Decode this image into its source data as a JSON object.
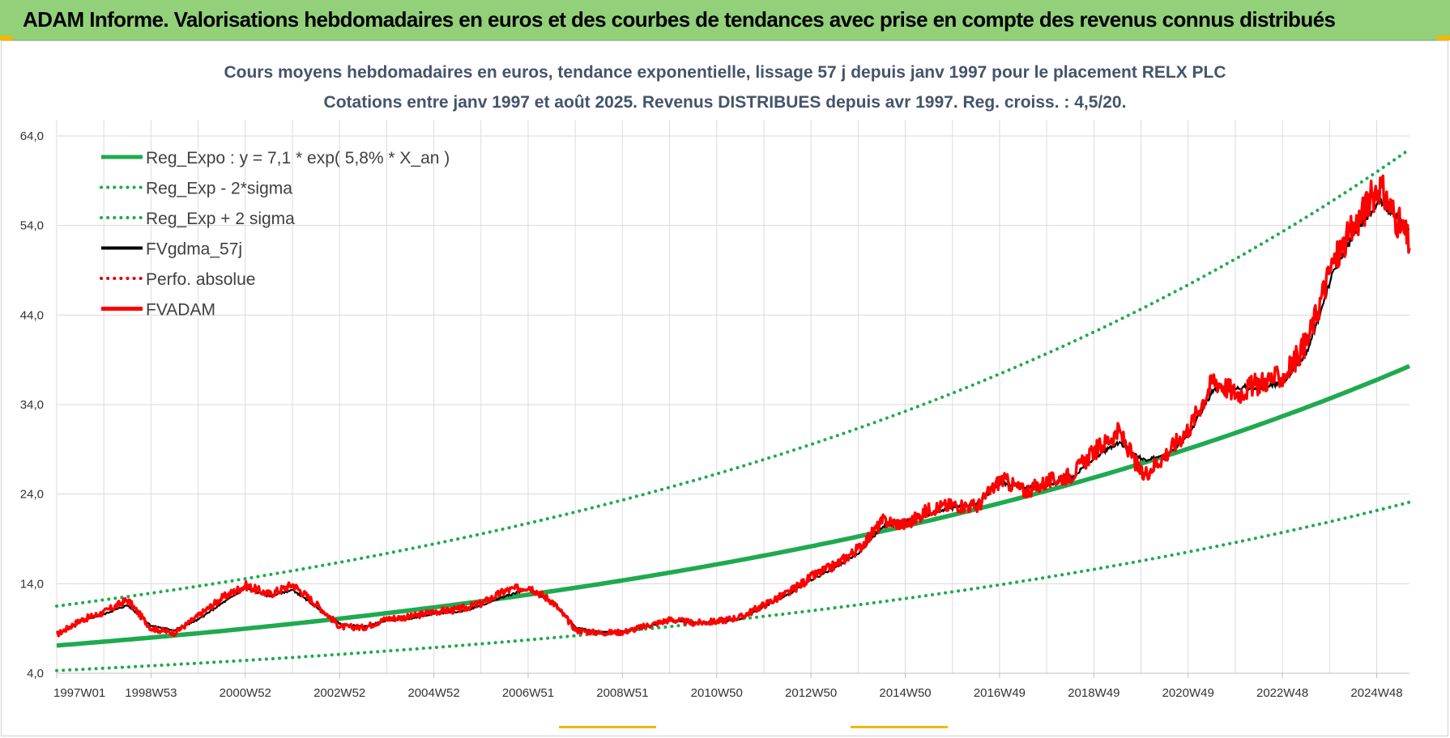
{
  "banner": {
    "title": "ADAM Informe. Valorisations hebdomadaires en euros et des courbes de tendances avec prise en compte des revenus connus distribués",
    "color": "#92d07a"
  },
  "chart_data": {
    "type": "line",
    "title": "Cours moyens hebdomadaires en euros, tendance exponentielle, lissage 57 j depuis janv 1997  pour le placement RELX PLC",
    "subtitle": "Cotations entre janv 1997 et août 2025.  Revenus DISTRIBUES depuis avr 1997. Reg.  croiss. : 4,5/20.",
    "xlabel": "",
    "ylabel": "",
    "ylim": [
      4,
      64
    ],
    "yticks": [
      "4,0",
      "14,0",
      "24,0",
      "34,0",
      "44,0",
      "54,0",
      "64,0"
    ],
    "xticks": [
      "1997W01",
      "1998W53",
      "2000W52",
      "2002W52",
      "2004W52",
      "2006W51",
      "2008W51",
      "2010W50",
      "2012W50",
      "2014W50",
      "2016W49",
      "2018W49",
      "2020W49",
      "2022W48",
      "2024W48"
    ],
    "xrange": [
      1997.0,
      2025.65
    ],
    "grid": true,
    "legend_position": "top-left",
    "series": [
      {
        "name": "Reg_Expo : y = 7,1 * exp( 5,8% *  X_an )",
        "style": "solid-thick",
        "color": "#1faa4f",
        "x": [
          1997,
          1999,
          2001,
          2003,
          2005,
          2007,
          2009,
          2011,
          2013,
          2015,
          2017,
          2019,
          2021,
          2023,
          2025.65
        ],
        "values": [
          7.1,
          8.0,
          9.0,
          10.1,
          11.4,
          12.9,
          14.5,
          16.3,
          18.4,
          20.7,
          23.2,
          26.2,
          29.5,
          33.2,
          38.3
        ]
      },
      {
        "name": "Reg_Exp - 2*sigma",
        "style": "dotted",
        "color": "#1faa4f",
        "x": [
          1997,
          1999,
          2001,
          2003,
          2005,
          2007,
          2009,
          2011,
          2013,
          2015,
          2017,
          2019,
          2021,
          2023,
          2025.65
        ],
        "values": [
          4.3,
          4.8,
          5.4,
          6.1,
          6.9,
          7.8,
          8.7,
          9.8,
          11.1,
          12.5,
          14.0,
          15.8,
          17.8,
          20.0,
          23.1
        ]
      },
      {
        "name": "Reg_Exp + 2 sigma",
        "style": "dotted",
        "color": "#1faa4f",
        "x": [
          1997,
          1999,
          2001,
          2003,
          2005,
          2007,
          2009,
          2011,
          2013,
          2015,
          2017,
          2019,
          2021,
          2023,
          2025.65
        ],
        "values": [
          11.5,
          13.0,
          14.6,
          16.5,
          18.5,
          20.9,
          23.5,
          26.5,
          29.8,
          33.6,
          37.8,
          42.6,
          47.9,
          54.0,
          62.5
        ]
      },
      {
        "name": "FVgdma_57j",
        "style": "solid",
        "color": "#000000",
        "x": [
          1997,
          1997.5,
          1998,
          1998.5,
          1999,
          1999.5,
          2000,
          2000.5,
          2001,
          2001.5,
          2002,
          2002.5,
          2003,
          2003.5,
          2004,
          2004.5,
          2005,
          2005.5,
          2006,
          2006.5,
          2007,
          2007.5,
          2008,
          2008.5,
          2009,
          2009.5,
          2010,
          2010.5,
          2011,
          2011.5,
          2012,
          2012.5,
          2013,
          2013.5,
          2014,
          2014.5,
          2015,
          2015.5,
          2016,
          2016.5,
          2017,
          2017.5,
          2018,
          2018.5,
          2019,
          2019.5,
          2020,
          2020.5,
          2021,
          2021.5,
          2022,
          2022.5,
          2023,
          2023.5,
          2024,
          2024.5,
          2025,
          2025.65
        ],
        "values": [
          8.4,
          9.8,
          10.6,
          11.6,
          9.3,
          8.8,
          10.0,
          11.8,
          13.5,
          12.6,
          13.3,
          11.4,
          9.5,
          9.2,
          9.9,
          10.1,
          10.7,
          10.8,
          11.6,
          12.6,
          13.4,
          11.9,
          9.1,
          8.6,
          8.7,
          9.2,
          9.9,
          9.7,
          9.7,
          10.1,
          11.5,
          12.8,
          14.5,
          15.8,
          17.5,
          20.4,
          21.0,
          21.8,
          22.5,
          23.0,
          25.3,
          24.7,
          25.0,
          25.8,
          28.2,
          29.8,
          27.8,
          28.2,
          31.0,
          35.6,
          36.0,
          35.9,
          36.6,
          40.0,
          48.3,
          53.2,
          56.8,
          53.5
        ]
      },
      {
        "name": "Perfo. absolue",
        "style": "dotted",
        "color": "#e00000",
        "x": [],
        "values": []
      },
      {
        "name": "FVADAM",
        "style": "solid-thick",
        "color": "#ff0000",
        "x": [
          1997,
          1997.5,
          1998,
          1998.5,
          1999,
          1999.5,
          2000,
          2000.5,
          2001,
          2001.5,
          2002,
          2002.5,
          2003,
          2003.5,
          2004,
          2004.5,
          2005,
          2005.5,
          2006,
          2006.5,
          2007,
          2007.5,
          2008,
          2008.5,
          2009,
          2009.5,
          2010,
          2010.5,
          2011,
          2011.5,
          2012,
          2012.5,
          2013,
          2013.5,
          2014,
          2014.5,
          2015,
          2015.5,
          2016,
          2016.5,
          2017,
          2017.5,
          2018,
          2018.5,
          2019,
          2019.5,
          2020,
          2020.5,
          2021,
          2021.5,
          2022,
          2022.5,
          2023,
          2023.5,
          2024,
          2024.5,
          2025,
          2025.65
        ],
        "values": [
          8.3,
          9.9,
          10.8,
          12.2,
          9.0,
          8.5,
          10.4,
          12.4,
          13.8,
          12.8,
          13.9,
          11.7,
          9.2,
          9.1,
          10.1,
          10.3,
          10.9,
          11.1,
          11.8,
          13.2,
          13.7,
          12.0,
          8.8,
          8.5,
          8.6,
          9.3,
          10.0,
          9.6,
          9.8,
          10.3,
          11.7,
          13.0,
          14.8,
          16.1,
          18.0,
          21.0,
          20.6,
          22.4,
          22.8,
          22.6,
          25.7,
          24.3,
          25.4,
          26.2,
          28.9,
          31.0,
          26.0,
          28.5,
          31.5,
          36.8,
          35.2,
          36.5,
          37.2,
          41.2,
          49.5,
          54.0,
          58.5,
          52.0
        ]
      }
    ]
  }
}
